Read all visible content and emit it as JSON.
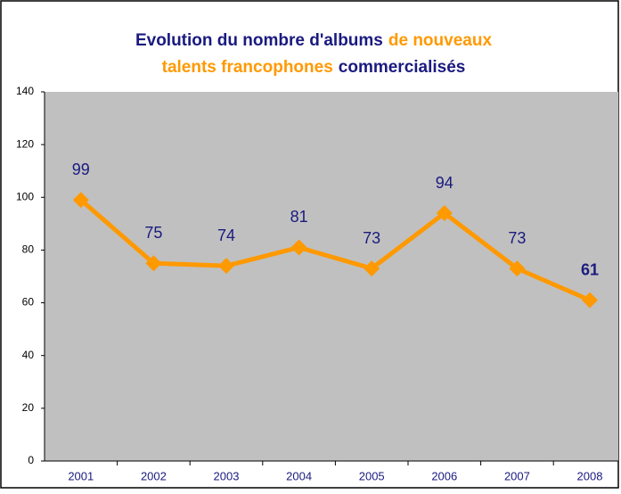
{
  "chart_data": {
    "type": "line",
    "title": [
      [
        {
          "text": "Evolution du nombre d'albums",
          "color": "#1a1a80"
        },
        {
          "text": "de nouveaux",
          "color": "#ff9900"
        }
      ],
      [
        {
          "text": "talents francophones",
          "color": "#ff9900"
        },
        {
          "text": "commercialisés",
          "color": "#1a1a80"
        }
      ]
    ],
    "categories": [
      "2001",
      "2002",
      "2003",
      "2004",
      "2005",
      "2006",
      "2007",
      "2008"
    ],
    "values": [
      99,
      75,
      74,
      81,
      73,
      94,
      73,
      61
    ],
    "color": "#ff9900",
    "label_color": "#1a1a80",
    "plot_background": "#c0c0c0",
    "ylim": [
      0,
      140
    ],
    "yticks": [
      0,
      20,
      40,
      60,
      80,
      100,
      120,
      140
    ]
  }
}
